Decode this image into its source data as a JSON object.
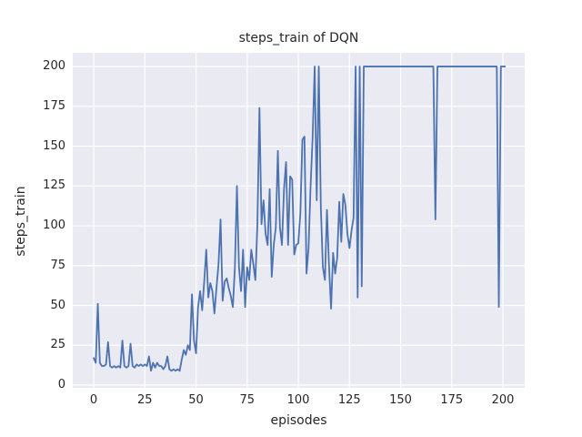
{
  "chart_data": {
    "type": "line",
    "title": "steps_train of DQN",
    "xlabel": "episodes",
    "ylabel": "steps_train",
    "xticks": [
      0,
      25,
      50,
      75,
      100,
      125,
      150,
      175,
      200
    ],
    "yticks": [
      0,
      25,
      50,
      75,
      100,
      125,
      150,
      175,
      200
    ],
    "xlim": [
      -10.25,
      210.65
    ],
    "ylim": [
      -1.7,
      208.6
    ],
    "grid": true,
    "legend": "none",
    "colors": {
      "line": "#4c72b0",
      "plot_background": "#eaeaf2",
      "grid": "#ffffff",
      "text": "#262626",
      "figure_background": "#ffffff"
    },
    "x_start": 0,
    "x_step": 1,
    "series_name": "steps_train",
    "values": [
      17,
      14,
      51,
      14,
      12,
      12,
      13,
      27,
      12,
      11,
      12,
      11,
      12,
      11,
      28,
      12,
      11,
      12,
      26,
      12,
      11,
      13,
      12,
      13,
      12,
      13,
      12,
      18,
      9,
      14,
      11,
      14,
      12,
      12,
      10,
      12,
      18,
      10,
      9,
      10,
      9,
      10,
      9,
      16,
      22,
      19,
      25,
      22,
      57,
      28,
      20,
      49,
      59,
      47,
      65,
      85,
      55,
      64,
      59,
      45,
      61,
      76,
      104,
      53,
      65,
      67,
      61,
      56,
      49,
      74,
      125,
      74,
      59,
      85,
      49,
      74,
      66,
      85,
      76,
      66,
      101,
      174,
      101,
      116,
      95,
      88,
      123,
      68,
      88,
      99,
      147,
      99,
      88,
      123,
      140,
      88,
      131,
      129,
      82,
      88,
      89,
      108,
      154,
      156,
      70,
      86,
      125,
      156,
      200,
      116,
      200,
      112,
      74,
      66,
      110,
      75,
      48,
      83,
      70,
      80,
      115,
      90,
      120,
      113,
      95,
      86,
      97,
      105,
      200,
      55,
      200,
      62,
      200,
      200,
      200,
      200,
      200,
      200,
      200,
      200,
      200,
      200,
      200,
      200,
      200,
      200,
      200,
      200,
      200,
      200,
      200,
      200,
      200,
      200,
      200,
      200,
      200,
      200,
      200,
      200,
      200,
      200,
      200,
      200,
      200,
      200,
      200,
      104,
      200,
      200,
      200,
      200,
      200,
      200,
      200,
      200,
      200,
      200,
      200,
      200,
      200,
      200,
      200,
      200,
      200,
      200,
      200,
      200,
      200,
      200,
      200,
      200,
      200,
      200,
      200,
      200,
      200,
      200,
      49,
      200,
      200,
      200
    ]
  }
}
